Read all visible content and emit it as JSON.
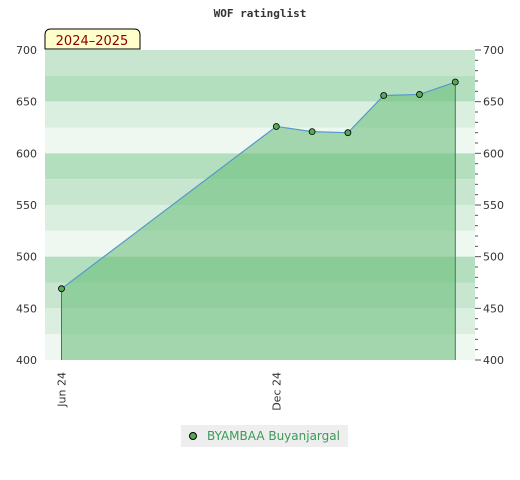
{
  "chart_data": {
    "type": "area",
    "title": "WOF ratinglist",
    "period_badge": "2024–2025",
    "xlabel": "",
    "ylabel": "",
    "x_tick_labels": [
      "Jun 24",
      "Dec 24"
    ],
    "ylim": [
      400,
      700
    ],
    "y_ticks": [
      400,
      450,
      500,
      550,
      600,
      650,
      700
    ],
    "grid": true,
    "legend_position": "bottom-center",
    "series": [
      {
        "name": "BYAMBAA Buyanjargal",
        "x": [
          "2024-06",
          "2024-12",
          "2025-01",
          "2025-02",
          "2025-03",
          "2025-04",
          "2025-05"
        ],
        "values": [
          469,
          626,
          621,
          620,
          656,
          657,
          669
        ]
      }
    ]
  },
  "colors": {
    "line": "#5599cc",
    "area_fill": "#66bb77",
    "marker_fill": "#55aa55",
    "band_dark": "#b3dfbf",
    "band_light": "#eef7f0",
    "badge_bg": "#ffffcc"
  }
}
